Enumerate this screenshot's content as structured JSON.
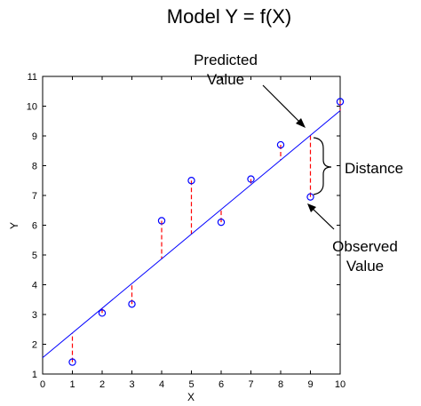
{
  "chart_data": {
    "type": "scatter",
    "title": "Model Y = f(X)",
    "xlabel": "X",
    "ylabel": "Y",
    "xlim": [
      0,
      10
    ],
    "ylim": [
      1,
      11
    ],
    "xticks": [
      "0",
      "1",
      "2",
      "3",
      "4",
      "5",
      "6",
      "7",
      "8",
      "9",
      "10"
    ],
    "yticks": [
      "1",
      "2",
      "3",
      "4",
      "5",
      "6",
      "7",
      "8",
      "9",
      "10",
      "11"
    ],
    "grid": false,
    "points": {
      "x": [
        1,
        2,
        3,
        4,
        5,
        6,
        7,
        8,
        9,
        10
      ],
      "y": [
        1.4,
        3.05,
        3.35,
        6.15,
        7.5,
        6.1,
        7.55,
        8.7,
        6.95,
        10.15
      ]
    },
    "fit_line": {
      "intercept": 1.55,
      "slope": 0.83
    },
    "annotations": {
      "predicted": "Predicted\nValue",
      "observed": "Observed\nValue",
      "distance": "Distance"
    },
    "colors": {
      "points": "#0000ff",
      "fit_line": "#0000ff",
      "residuals": "#ff0000",
      "axes": "#000000"
    }
  }
}
